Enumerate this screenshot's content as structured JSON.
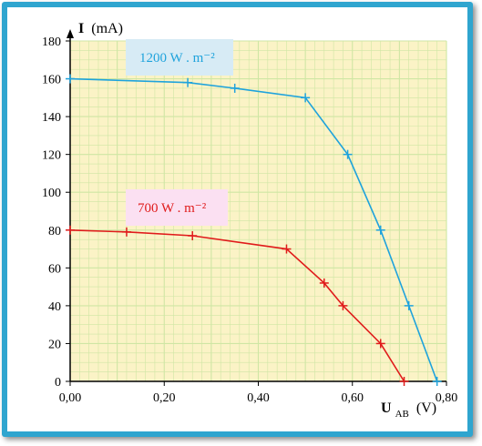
{
  "chart_data": {
    "type": "line",
    "ylabel": {
      "main": "I",
      "unit": "(mA)"
    },
    "xlabel": {
      "main": "U",
      "sub": "AB",
      "unit": "(V)"
    },
    "xlim": [
      0,
      0.8
    ],
    "ylim": [
      0,
      180
    ],
    "xticks": [
      "0,00",
      "0,20",
      "0,40",
      "0,60",
      "0,80"
    ],
    "yticks": [
      "0",
      "20",
      "40",
      "60",
      "80",
      "100",
      "120",
      "140",
      "160",
      "180"
    ],
    "grid": true,
    "series": [
      {
        "name": "1200 W . m⁻²",
        "color": "#1fa3dc",
        "x": [
          0.0,
          0.25,
          0.35,
          0.5,
          0.59,
          0.66,
          0.72,
          0.78
        ],
        "y": [
          160,
          158,
          155,
          150,
          120,
          80,
          40,
          0
        ]
      },
      {
        "name": "700 W . m⁻²",
        "color": "#e01b1b",
        "x": [
          0.0,
          0.12,
          0.26,
          0.46,
          0.54,
          0.58,
          0.66,
          0.71
        ],
        "y": [
          80,
          79,
          77,
          70,
          52,
          40,
          20,
          0
        ]
      }
    ]
  },
  "colors": {
    "frame": "#2fa5cf",
    "plot_background": "#fbf3c6",
    "grid": "#cfe6a4",
    "label_box_1200": "#d7ebf5",
    "label_box_700": "#fbe0f2"
  }
}
